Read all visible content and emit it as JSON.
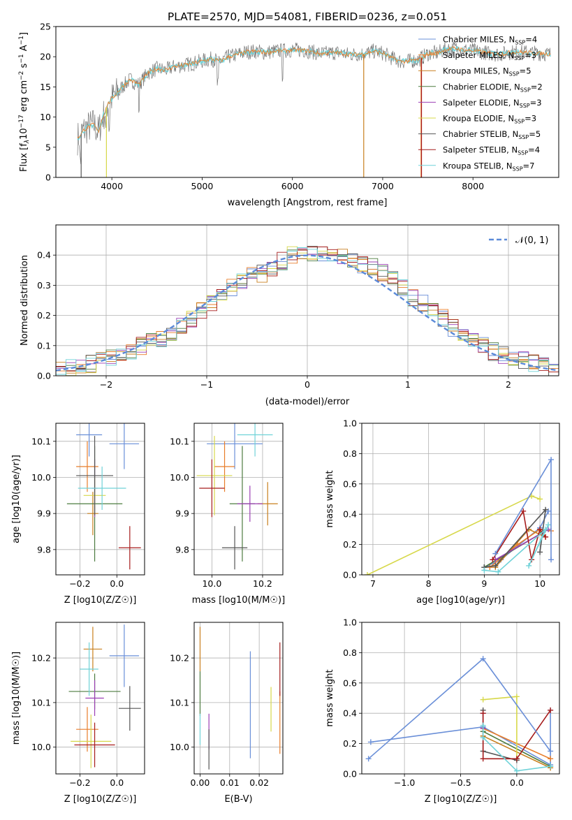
{
  "figure": {
    "title": "PLATE=2570, MJD=54081, FIBERID=0236, z=0.051"
  },
  "colors": [
    "#6a8fd8",
    "#e87d2a",
    "#c87f1d",
    "#4c7b3f",
    "#9b3fb4",
    "#d7d84a",
    "#555555",
    "#a61c1c",
    "#6fd2d8"
  ],
  "chart_data": [
    {
      "type": "line",
      "id": "spectrum",
      "xlabel": "wavelength [Angstrom, rest frame]",
      "ylabel": "Flux [f_λ10^-17 erg cm^-2 s^-1 A^-1]",
      "xlim": [
        3380,
        8950
      ],
      "ylim": [
        0,
        25
      ],
      "xticks": [
        4000,
        5000,
        6000,
        7000,
        8000
      ],
      "yticks": [
        0,
        5,
        10,
        15,
        20,
        25
      ],
      "grid": false,
      "legend_position": "right",
      "spectrum_points": {
        "x": [
          3620,
          3700,
          3800,
          3850,
          3900,
          3950,
          4000,
          4100,
          4200,
          4300,
          4400,
          4500,
          4600,
          4700,
          4800,
          4900,
          5000,
          5100,
          5200,
          5300,
          5400,
          5500,
          5600,
          5700,
          5800,
          5900,
          6000,
          6100,
          6200,
          6300,
          6400,
          6500,
          6600,
          6700,
          6800,
          6900,
          7000,
          7100,
          7200,
          7300,
          7400,
          7500,
          7600,
          7700,
          7800,
          7900,
          8000,
          8100,
          8200,
          8300,
          8400,
          8500,
          8600,
          8700,
          8800,
          8860
        ],
        "y": [
          6.5,
          8.0,
          8.8,
          7.5,
          10.0,
          12.0,
          13.0,
          14.8,
          16.2,
          15.4,
          17.3,
          18.0,
          17.8,
          18.4,
          18.6,
          18.9,
          19.3,
          19.6,
          19.3,
          20.0,
          20.4,
          20.8,
          20.9,
          20.7,
          20.9,
          21.0,
          21.1,
          21.1,
          20.9,
          20.5,
          20.6,
          20.7,
          20.4,
          20.4,
          20.5,
          20.9,
          20.6,
          19.8,
          19.2,
          19.3,
          19.5,
          20.5,
          20.6,
          21.2,
          21.4,
          21.1,
          21.0,
          20.8,
          20.5,
          20.4,
          20.7,
          20.8,
          20.7,
          20.6,
          20.5,
          20.4
        ]
      },
      "series": [
        {
          "name": "Chabrier MILES",
          "nssp": "4"
        },
        {
          "name": "Salpeter MILES",
          "nssp": "3"
        },
        {
          "name": "Kroupa MILES",
          "nssp": "5"
        },
        {
          "name": "Chabrier ELODIE",
          "nssp": "2"
        },
        {
          "name": "Salpeter ELODIE",
          "nssp": "3"
        },
        {
          "name": "Kroupa ELODIE",
          "nssp": "3"
        },
        {
          "name": "Chabrier STELIB",
          "nssp": "5"
        },
        {
          "name": "Salpeter STELIB",
          "nssp": "4"
        },
        {
          "name": "Kroupa STELIB",
          "nssp": "7"
        }
      ]
    },
    {
      "type": "bar",
      "id": "residuals",
      "xlabel": "(data-model)/error",
      "ylabel": "Normed distribution",
      "xlim": [
        -2.5,
        2.5
      ],
      "ylim": [
        0,
        0.5
      ],
      "xticks": [
        -2,
        -1,
        0,
        1,
        2
      ],
      "xticklabels": [
        "−2",
        "−1",
        "0",
        "1",
        "2"
      ],
      "yticks": [
        0.0,
        0.1,
        0.2,
        0.3,
        0.4
      ],
      "grid": true,
      "legend_position": "top-right",
      "legend_label": "𝒩(0, 1)",
      "gaussian": {
        "mean": 0,
        "sigma": 1
      },
      "bin_edges": [
        -2.5,
        -2.4,
        -2.3,
        -2.2,
        -2.1,
        -2.0,
        -1.9,
        -1.8,
        -1.7,
        -1.6,
        -1.5,
        -1.4,
        -1.3,
        -1.2,
        -1.1,
        -1.0,
        -0.9,
        -0.8,
        -0.7,
        -0.6,
        -0.5,
        -0.4,
        -0.3,
        -0.2,
        -0.1,
        0.0,
        0.1,
        0.2,
        0.3,
        0.4,
        0.5,
        0.6,
        0.7,
        0.8,
        0.9,
        1.0,
        1.1,
        1.2,
        1.3,
        1.4,
        1.5,
        1.6,
        1.7,
        1.8,
        1.9,
        2.0,
        2.1,
        2.2,
        2.3,
        2.4,
        2.5
      ],
      "bin_values": [
        0.02,
        0.03,
        0.03,
        0.04,
        0.05,
        0.06,
        0.06,
        0.08,
        0.1,
        0.12,
        0.12,
        0.14,
        0.17,
        0.19,
        0.22,
        0.24,
        0.26,
        0.29,
        0.31,
        0.34,
        0.34,
        0.36,
        0.38,
        0.4,
        0.4,
        0.41,
        0.41,
        0.4,
        0.39,
        0.39,
        0.37,
        0.36,
        0.34,
        0.32,
        0.29,
        0.26,
        0.24,
        0.21,
        0.19,
        0.16,
        0.14,
        0.12,
        0.1,
        0.08,
        0.07,
        0.06,
        0.05,
        0.04,
        0.03,
        0.02
      ]
    },
    {
      "type": "scatter",
      "id": "age-vs-Z",
      "xlabel": "Z [log10(Z/Z☉)]",
      "ylabel": "age  [log10(age/yr)]",
      "xlim": [
        -0.33,
        0.15
      ],
      "ylim": [
        9.73,
        10.15
      ],
      "xticks": [
        -0.2,
        0.0
      ],
      "xticklabels": [
        "−0.2",
        "0.0"
      ],
      "yticks": [
        9.8,
        9.9,
        10.0,
        10.1
      ],
      "grid": true,
      "points": [
        {
          "x": 0.04,
          "y": 10.093,
          "xerr": 0.08,
          "yerr": 0.07
        },
        {
          "x": -0.16,
          "y": 10.03,
          "xerr": 0.06,
          "yerr": 0.07
        },
        {
          "x": -0.13,
          "y": 9.9,
          "xerr": 0.03,
          "yerr": 0.06
        },
        {
          "x": -0.12,
          "y": 9.927,
          "xerr": 0.15,
          "yerr": 0.16
        },
        {
          "x": -0.12,
          "y": 9.97,
          "xerr": 0.015,
          "yerr": 0.08
        },
        {
          "x": -0.12,
          "y": 9.95,
          "xerr": 0.06,
          "yerr": 0.05
        },
        {
          "x": -0.12,
          "y": 10.005,
          "xerr": 0.1,
          "yerr": 0.11
        },
        {
          "x": 0.07,
          "y": 9.805,
          "xerr": 0.06,
          "yerr": 0.06
        },
        {
          "x": -0.08,
          "y": 9.97,
          "xerr": 0.13,
          "yerr": 0.06
        },
        {
          "x": -0.15,
          "y": 10.118,
          "xerr": 0.07,
          "yerr": 0.06
        }
      ]
    },
    {
      "type": "scatter",
      "id": "age-vs-mass",
      "xlabel": "mass [log10(M/M☉)]",
      "ylabel": "",
      "xlim": [
        9.93,
        10.28
      ],
      "ylim": [
        9.73,
        10.15
      ],
      "xticks": [
        10.0,
        10.2
      ],
      "xticklabels": [
        "10.0",
        "10.2"
      ],
      "yticks": [
        9.8,
        9.9,
        10.0,
        10.1
      ],
      "grid": true,
      "points": [
        {
          "x": 10.09,
          "y": 10.093,
          "xerr": 0.11,
          "yerr": 0.07
        },
        {
          "x": 10.05,
          "y": 10.03,
          "xerr": 0.04,
          "yerr": 0.07
        },
        {
          "x": 10.22,
          "y": 9.927,
          "xerr": 0.04,
          "yerr": 0.06
        },
        {
          "x": 10.12,
          "y": 9.927,
          "xerr": 0.05,
          "yerr": 0.16
        },
        {
          "x": 10.15,
          "y": 9.927,
          "xerr": 0.05,
          "yerr": 0.05
        },
        {
          "x": 10.01,
          "y": 10.005,
          "xerr": 0.07,
          "yerr": 0.11
        },
        {
          "x": 10.09,
          "y": 9.805,
          "xerr": 0.05,
          "yerr": 0.06
        },
        {
          "x": 10.0,
          "y": 9.97,
          "xerr": 0.05,
          "yerr": 0.08
        },
        {
          "x": 10.17,
          "y": 10.118,
          "xerr": 0.07,
          "yerr": 0.06
        }
      ]
    },
    {
      "type": "line",
      "id": "weight-vs-age",
      "xlabel": "age  [log10(age/yr)]",
      "ylabel": "mass weight",
      "xlim": [
        6.8,
        10.35
      ],
      "ylim": [
        0,
        1
      ],
      "xticks": [
        7,
        8,
        9,
        10
      ],
      "yticks": [
        0.0,
        0.2,
        0.4,
        0.6,
        0.8,
        1.0
      ],
      "grid": true,
      "series": [
        {
          "x": [
            9.0,
            9.3,
            10.0,
            10.15
          ],
          "y": [
            0.05,
            0.1,
            0.31,
            0.42
          ]
        },
        {
          "x": [
            9.1,
            9.6,
            10.0,
            10.2
          ],
          "y": [
            0.05,
            0.2,
            0.3,
            0.29
          ]
        },
        {
          "x": [
            9.2,
            9.8,
            10.1
          ],
          "y": [
            0.05,
            0.3,
            0.25
          ]
        },
        {
          "x": [
            9.0,
            10.05
          ],
          "y": [
            0.05,
            0.28
          ]
        },
        {
          "x": [
            9.2,
            10.15
          ],
          "y": [
            0.1,
            0.3
          ]
        },
        {
          "x": [
            6.9,
            9.85,
            10.0
          ],
          "y": [
            0.0,
            0.52,
            0.5
          ]
        },
        {
          "x": [
            9.0,
            9.2,
            10.1,
            10.0
          ],
          "y": [
            0.05,
            0.06,
            0.43,
            0.15
          ]
        },
        {
          "x": [
            9.15,
            9.7,
            9.85,
            10.0,
            10.1
          ],
          "y": [
            0.1,
            0.42,
            0.1,
            0.3,
            0.25
          ]
        },
        {
          "x": [
            9.0,
            9.25,
            10.1,
            9.8,
            10.15
          ],
          "y": [
            0.03,
            0.02,
            0.3,
            0.06,
            0.33
          ]
        },
        {
          "x": [
            9.2,
            10.2,
            10.2
          ],
          "y": [
            0.14,
            0.76,
            0.1
          ]
        }
      ]
    },
    {
      "type": "scatter",
      "id": "mass-vs-Z",
      "xlabel": "Z [log10(Z/Z☉)]",
      "ylabel": "mass [log10(M/M☉)]",
      "xlim": [
        -0.33,
        0.15
      ],
      "ylim": [
        9.94,
        10.28
      ],
      "xticks": [
        -0.2,
        0.0
      ],
      "xticklabels": [
        "−0.2",
        "0.0"
      ],
      "yticks": [
        10.0,
        10.1,
        10.2
      ],
      "grid": true,
      "points": [
        {
          "x": 0.04,
          "y": 10.205,
          "xerr": 0.08,
          "yerr": 0.07
        },
        {
          "x": -0.16,
          "y": 10.04,
          "xerr": 0.06,
          "yerr": 0.05
        },
        {
          "x": -0.13,
          "y": 10.22,
          "xerr": 0.05,
          "yerr": 0.05
        },
        {
          "x": -0.12,
          "y": 10.125,
          "xerr": 0.14,
          "yerr": 0.04
        },
        {
          "x": -0.12,
          "y": 10.11,
          "xerr": 0.05,
          "yerr": 0.04
        },
        {
          "x": -0.14,
          "y": 10.013,
          "xerr": 0.11,
          "yerr": 0.06
        },
        {
          "x": 0.07,
          "y": 10.087,
          "xerr": 0.06,
          "yerr": 0.05
        },
        {
          "x": -0.12,
          "y": 10.005,
          "xerr": 0.11,
          "yerr": 0.05
        },
        {
          "x": -0.15,
          "y": 10.175,
          "xerr": 0.05,
          "yerr": 0.06
        }
      ]
    },
    {
      "type": "scatter",
      "id": "mass-vs-ebv",
      "xlabel": "E(B-V)",
      "ylabel": "",
      "xlim": [
        -0.002,
        0.028
      ],
      "ylim": [
        9.94,
        10.28
      ],
      "xticks": [
        0.0,
        0.01,
        0.02
      ],
      "xticklabels": [
        "0.00",
        "0.01",
        "0.02"
      ],
      "yticks": [
        10.0,
        10.1,
        10.2
      ],
      "grid": true,
      "points": [
        {
          "x": 0.017,
          "y": 10.095,
          "yerr": 0.12
        },
        {
          "x": 0.027,
          "y": 10.055,
          "yerr": 0.07
        },
        {
          "x": 0.0,
          "y": 10.22,
          "yerr": 0.05
        },
        {
          "x": 0.0,
          "y": 10.12,
          "yerr": 0.05
        },
        {
          "x": 0.003,
          "y": 10.035,
          "yerr": 0.04
        },
        {
          "x": 0.024,
          "y": 10.085,
          "yerr": 0.05
        },
        {
          "x": 0.003,
          "y": 9.995,
          "yerr": 0.045
        },
        {
          "x": 0.027,
          "y": 10.175,
          "yerr": 0.06
        },
        {
          "x": 0.0,
          "y": 10.04,
          "yerr": 0.035
        }
      ]
    },
    {
      "type": "line",
      "id": "weight-vs-Z",
      "xlabel": "Z [log10(Z/Z☉)]",
      "ylabel": "mass weight",
      "xlim": [
        -1.38,
        0.38
      ],
      "ylim": [
        0,
        1
      ],
      "xticks": [
        -1.0,
        -0.5,
        0.0
      ],
      "xticklabels": [
        "−1.0",
        "−0.5",
        "0.0"
      ],
      "yticks": [
        0.0,
        0.2,
        0.4,
        0.6,
        0.8,
        1.0
      ],
      "grid": true,
      "series": [
        {
          "x": [
            -1.3,
            -0.3,
            0.3,
            0.3
          ],
          "y": [
            0.21,
            0.31,
            0.06,
            0.42
          ]
        },
        {
          "x": [
            -0.3,
            0.3
          ],
          "y": [
            0.3,
            0.1
          ]
        },
        {
          "x": [
            -0.3,
            0.3
          ],
          "y": [
            0.25,
            0.04
          ]
        },
        {
          "x": [
            -0.3,
            0.3
          ],
          "y": [
            0.28,
            0.05
          ]
        },
        {
          "x": [
            -0.3,
            -0.3
          ],
          "y": [
            0.3,
            0.4
          ]
        },
        {
          "x": [
            -0.3,
            0.0,
            0.0
          ],
          "y": [
            0.49,
            0.51,
            0.1
          ]
        },
        {
          "x": [
            -0.3,
            -0.3,
            0.0
          ],
          "y": [
            0.42,
            0.15,
            0.09
          ]
        },
        {
          "x": [
            -0.3,
            -0.3,
            0.0,
            0.3
          ],
          "y": [
            0.4,
            0.1,
            0.1,
            0.42
          ]
        },
        {
          "x": [
            -0.3,
            -0.3,
            0.0,
            0.3
          ],
          "y": [
            0.32,
            0.24,
            0.02,
            0.05
          ]
        },
        {
          "x": [
            -1.32,
            -0.3,
            0.3
          ],
          "y": [
            0.1,
            0.76,
            0.15
          ]
        }
      ]
    }
  ]
}
